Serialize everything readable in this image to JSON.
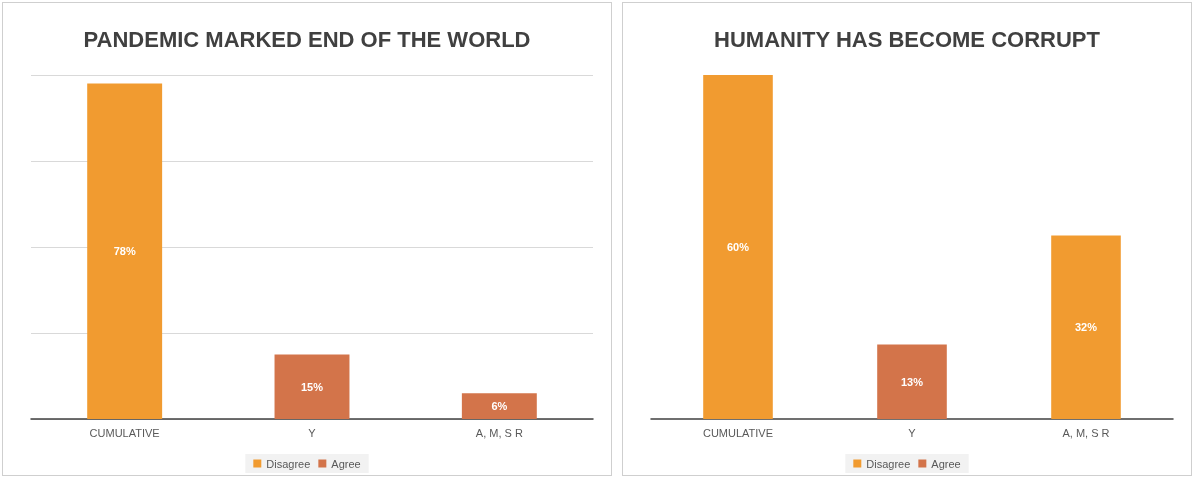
{
  "chart_data": [
    {
      "type": "bar",
      "title": "PANDEMIC MARKED END OF THE WORLD",
      "categories": [
        "CUMULATIVE",
        "Y",
        "A, M, S R"
      ],
      "stacked": true,
      "series": [
        {
          "name": "Disagree",
          "color": "#f19b30",
          "values": [
            78,
            null,
            null
          ],
          "value_labels": [
            "78%",
            null,
            null
          ]
        },
        {
          "name": "Agree",
          "color": "#d3744a",
          "values": [
            null,
            15,
            6
          ],
          "value_labels": [
            null,
            "15%",
            "6%"
          ]
        }
      ],
      "grid": "y",
      "tick_labels": "x",
      "legend": "bottom"
    },
    {
      "type": "bar",
      "title": "HUMANITY HAS BECOME CORRUPT",
      "categories": [
        "CUMULATIVE",
        "Y",
        "A, M, S R"
      ],
      "stacked": true,
      "series": [
        {
          "name": "Disagree",
          "color": "#f19b30",
          "values": [
            60,
            null,
            32
          ],
          "value_labels": [
            "60%",
            null,
            "32%"
          ]
        },
        {
          "name": "Agree",
          "color": "#d3744a",
          "values": [
            null,
            13,
            null
          ],
          "value_labels": [
            null,
            "13%",
            null
          ]
        }
      ],
      "tick_labels": "x",
      "legend": "bottom"
    }
  ]
}
